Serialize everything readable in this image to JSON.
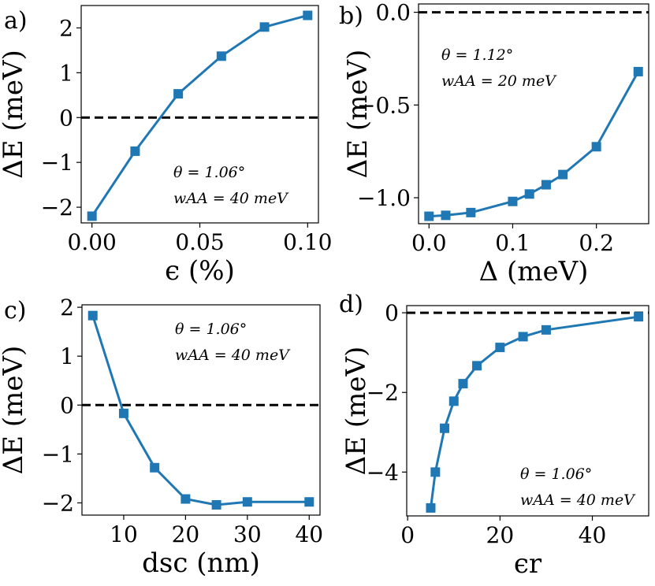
{
  "chart_data": [
    {
      "type": "line",
      "panel_label": "a)",
      "xlabel": "ϵ (%)",
      "ylabel": "ΔE (meV)",
      "xlim": [
        -0.005,
        0.105
      ],
      "ylim": [
        -2.35,
        2.5
      ],
      "xticks": [
        0.0,
        0.05,
        0.1
      ],
      "xtick_labels": [
        "0.00",
        "0.05",
        "0.10"
      ],
      "yticks": [
        -2,
        -1,
        0,
        1,
        2
      ],
      "ytick_labels": [
        "−2",
        "−1",
        "0",
        "1",
        "2"
      ],
      "hline": 0,
      "annotation": [
        "θ = 1.06°",
        "wAA = 40 meV"
      ],
      "annotation_position": "bottom-right",
      "series": [
        {
          "name": "ΔE",
          "x": [
            0.0,
            0.02,
            0.04,
            0.06,
            0.08,
            0.1
          ],
          "y": [
            -2.2,
            -0.75,
            0.53,
            1.37,
            2.02,
            2.28
          ]
        }
      ]
    },
    {
      "type": "line",
      "panel_label": "b)",
      "xlabel": "Δ (meV)",
      "ylabel": "ΔE (meV)",
      "xlim": [
        -0.0125,
        0.2625
      ],
      "ylim": [
        -1.14,
        0.045
      ],
      "xticks": [
        0.0,
        0.1,
        0.2
      ],
      "xtick_labels": [
        "0.0",
        "0.1",
        "0.2"
      ],
      "yticks": [
        0.0,
        -0.5,
        -1.0
      ],
      "ytick_labels": [
        "0.0",
        "−0.5",
        "−1.0"
      ],
      "hline": 0,
      "annotation": [
        "θ = 1.12°",
        "wAA = 20 meV"
      ],
      "annotation_position": "top-left",
      "series": [
        {
          "name": "ΔE",
          "x": [
            0.0,
            0.02,
            0.05,
            0.1,
            0.12,
            0.14,
            0.16,
            0.2,
            0.25
          ],
          "y": [
            -1.1,
            -1.095,
            -1.08,
            -1.02,
            -0.98,
            -0.93,
            -0.875,
            -0.725,
            -0.32
          ]
        }
      ]
    },
    {
      "type": "line",
      "panel_label": "c)",
      "xlabel": "dsc (nm)",
      "ylabel": "ΔE (meV)",
      "xlim": [
        3.25,
        41.75
      ],
      "ylim": [
        -2.25,
        2.05
      ],
      "xticks": [
        10,
        20,
        30,
        40
      ],
      "xtick_labels": [
        "10",
        "20",
        "30",
        "40"
      ],
      "yticks": [
        -2,
        -1,
        0,
        1,
        2
      ],
      "ytick_labels": [
        "−2",
        "−1",
        "0",
        "1",
        "2"
      ],
      "hline": 0,
      "annotation": [
        "θ = 1.06°",
        "wAA = 40 meV"
      ],
      "annotation_position": "top-right",
      "series": [
        {
          "name": "ΔE",
          "x": [
            5,
            10,
            15,
            20,
            25,
            30,
            40
          ],
          "y": [
            1.83,
            -0.17,
            -1.28,
            -1.92,
            -2.04,
            -1.98,
            -1.98
          ]
        }
      ]
    },
    {
      "type": "line",
      "panel_label": "d)",
      "xlabel": "ϵr",
      "ylabel": "ΔE (meV)",
      "xlim": [
        -0.2,
        52.2
      ],
      "ylim": [
        -5.1,
        0.18
      ],
      "xticks": [
        0,
        20,
        40
      ],
      "xtick_labels": [
        "0",
        "20",
        "40"
      ],
      "yticks": [
        0,
        -2,
        -4
      ],
      "ytick_labels": [
        "0",
        "−2",
        "−4"
      ],
      "hline": 0,
      "annotation": [
        "θ = 1.06°",
        "wAA = 40 meV"
      ],
      "annotation_position": "bottom-right",
      "series": [
        {
          "name": "ΔE",
          "x": [
            5,
            6,
            8,
            10,
            12,
            15,
            20,
            25,
            30,
            50
          ],
          "y": [
            -4.9,
            -4.0,
            -2.9,
            -2.22,
            -1.78,
            -1.33,
            -0.87,
            -0.6,
            -0.43,
            -0.1
          ]
        }
      ]
    }
  ]
}
